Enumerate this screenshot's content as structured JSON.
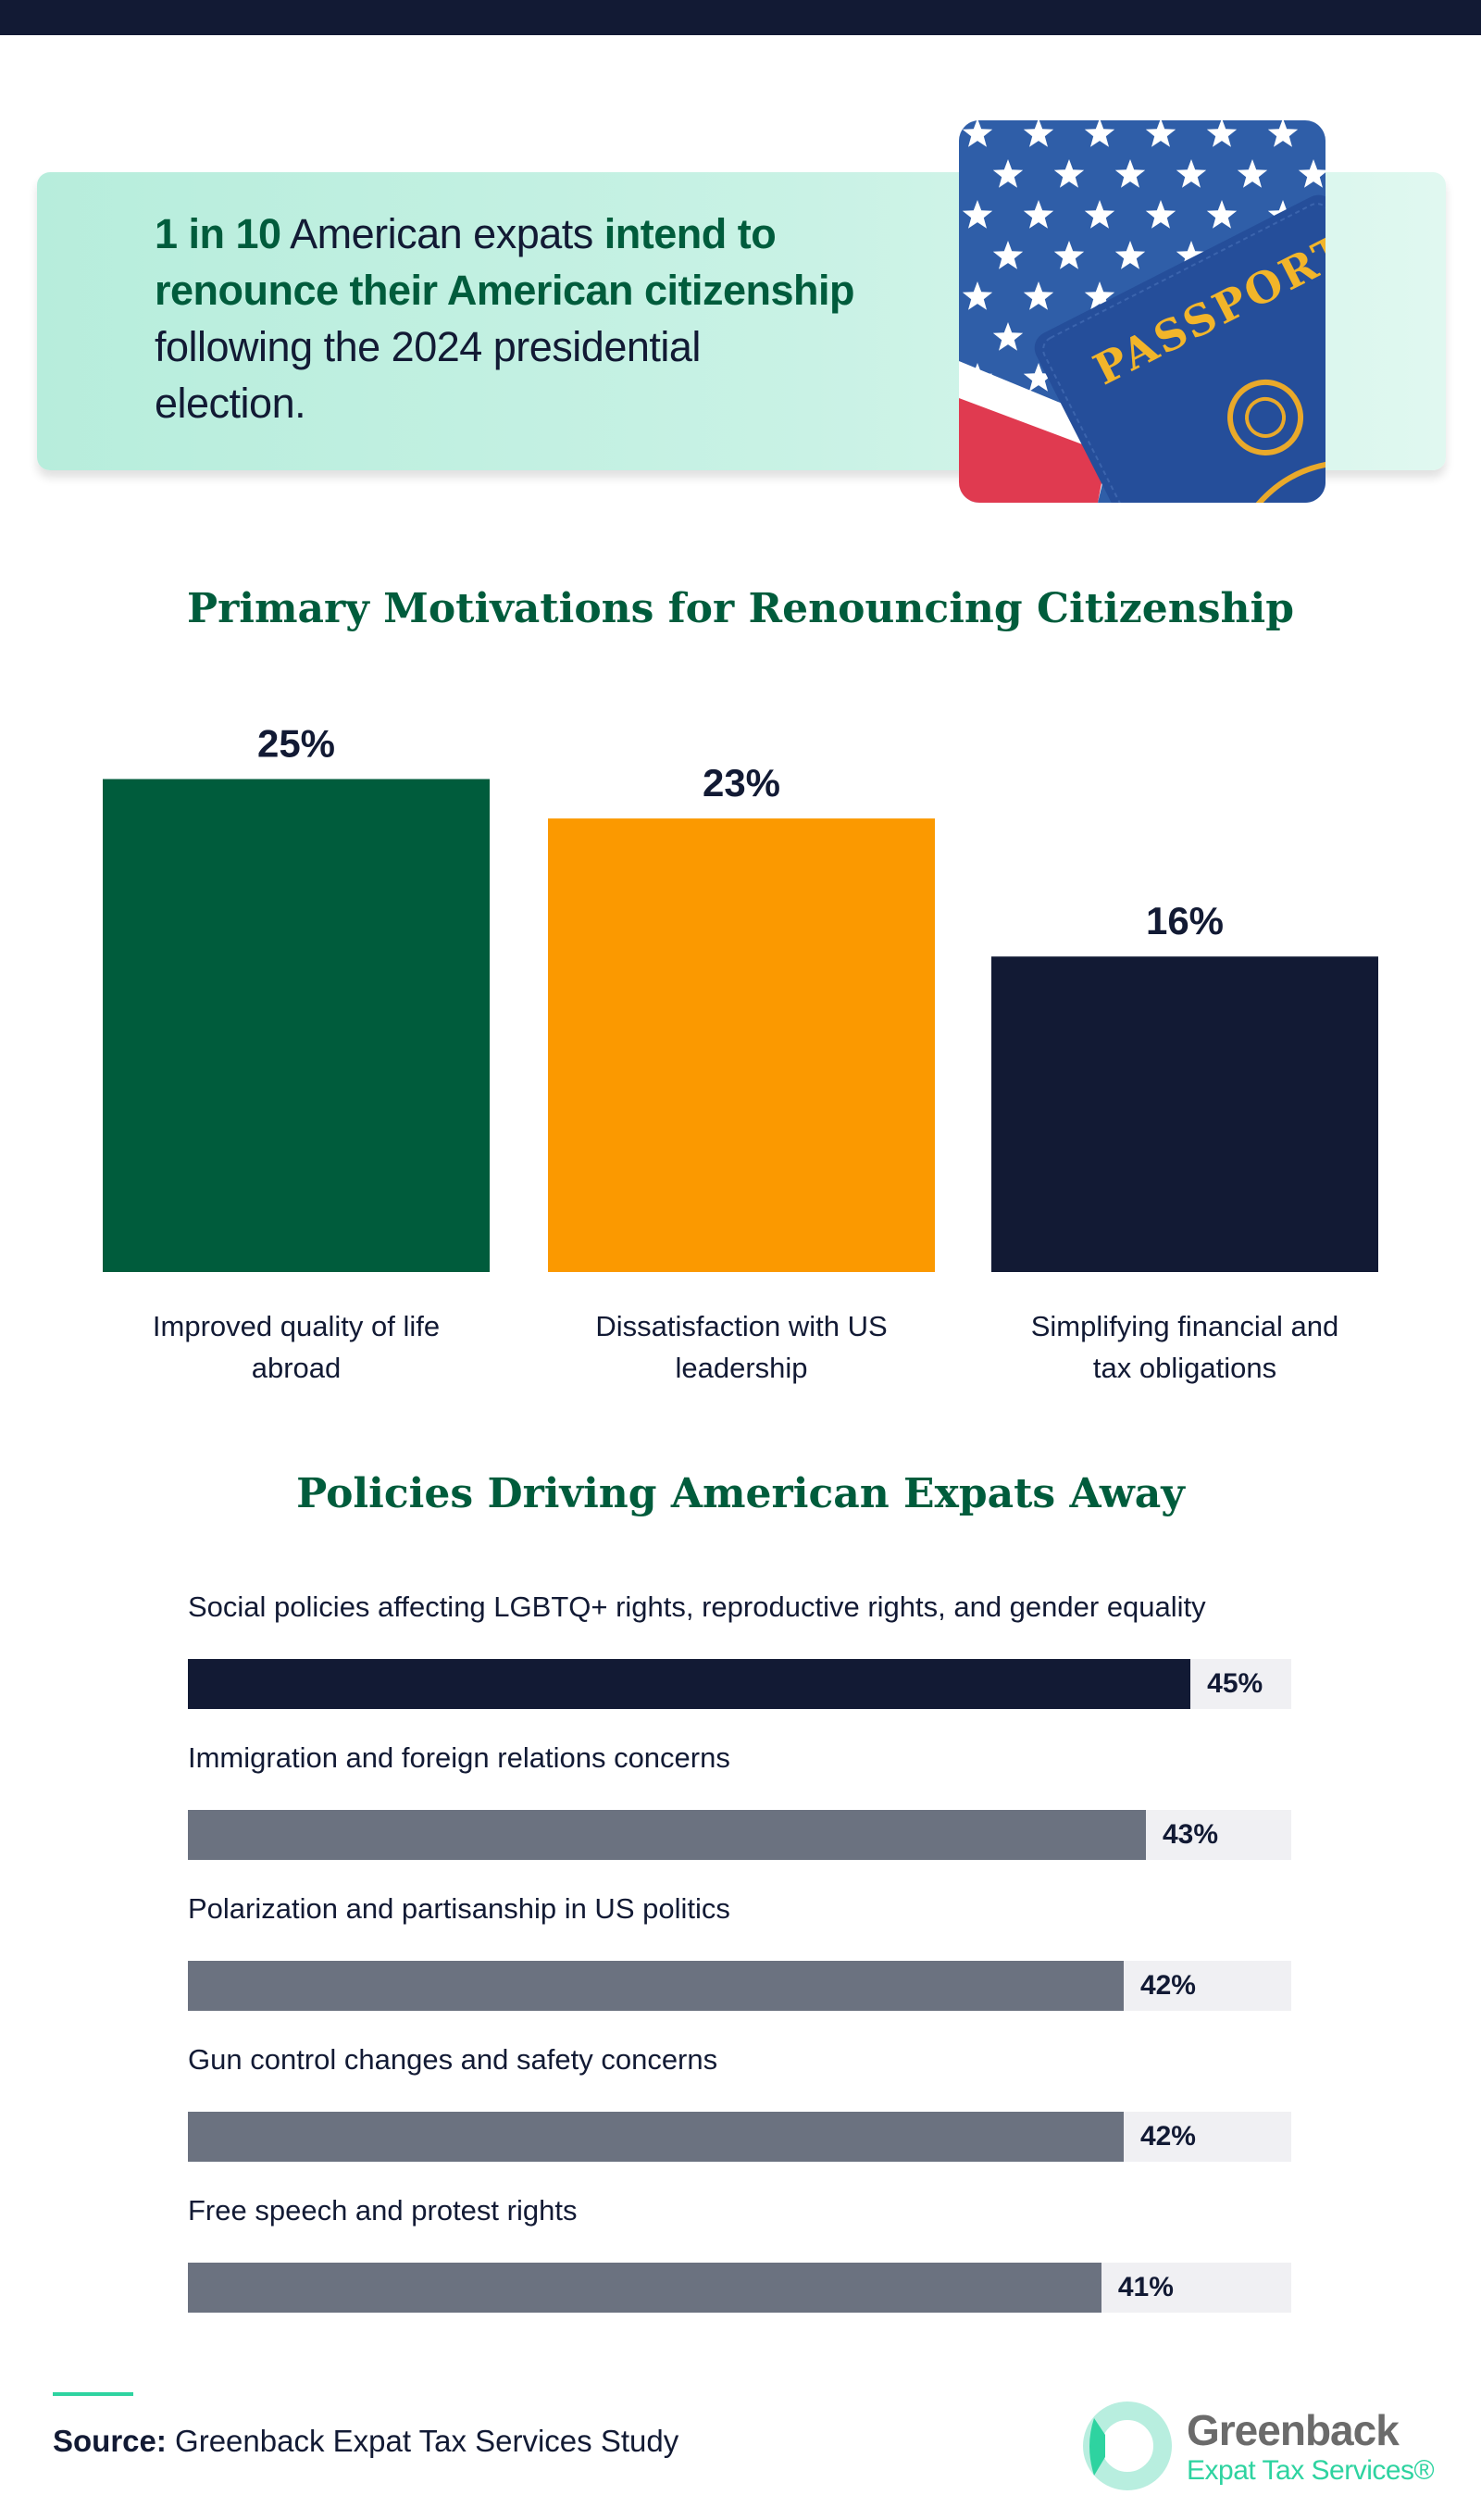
{
  "header": {
    "headline_parts": [
      {
        "text": "1 in 10",
        "bold": true
      },
      {
        "text": " American expats ",
        "bold": false
      },
      {
        "text": "intend to renounce their American citizenship",
        "bold": true
      },
      {
        "text": " following the 2024 presidential election.",
        "bold": false
      }
    ],
    "photo_text": "PASSPORT"
  },
  "colors": {
    "green": "#005c3c",
    "orange": "#fb9900",
    "navy": "#121a34",
    "gray": "#6b7280",
    "track": "#f0f0f3",
    "teal": "#2ed3a0"
  },
  "chart_data": [
    {
      "type": "bar",
      "title": "Primary Motivations for Renouncing Citizenship",
      "categories": [
        "Improved quality of life abroad",
        "Dissatisfaction with US leadership",
        "Simplifying financial and tax obligations"
      ],
      "category_lines": [
        [
          "Improved quality of life",
          "abroad"
        ],
        [
          "Dissatisfaction with US",
          "leadership"
        ],
        [
          "Simplifying financial and",
          "tax obligations"
        ]
      ],
      "values": [
        25,
        23,
        16
      ],
      "value_labels": [
        "25%",
        "23%",
        "16%"
      ],
      "bar_colors": [
        "#005c3c",
        "#fb9900",
        "#121a34"
      ],
      "unit": "%",
      "grid": false
    },
    {
      "type": "bar",
      "orientation": "horizontal",
      "title": "Policies Driving American Expats Away",
      "categories": [
        "Social policies affecting LGBTQ+ rights, reproductive rights, and gender equality",
        "Immigration and foreign relations concerns",
        "Polarization and partisanship in US politics",
        "Gun control changes and safety concerns",
        "Free speech and protest rights"
      ],
      "values": [
        45,
        43,
        42,
        42,
        41
      ],
      "value_labels": [
        "45%",
        "43%",
        "42%",
        "42%",
        "41%"
      ],
      "bar_colors": [
        "#121a34",
        "#6b7280",
        "#6b7280",
        "#6b7280",
        "#6b7280"
      ],
      "unit": "%",
      "grid": false
    }
  ],
  "footer": {
    "source_label": "Source:",
    "source_text": " Greenback Expat Tax Services Study",
    "logo_line1": "Greenback",
    "logo_line2": "Expat Tax Services®"
  }
}
